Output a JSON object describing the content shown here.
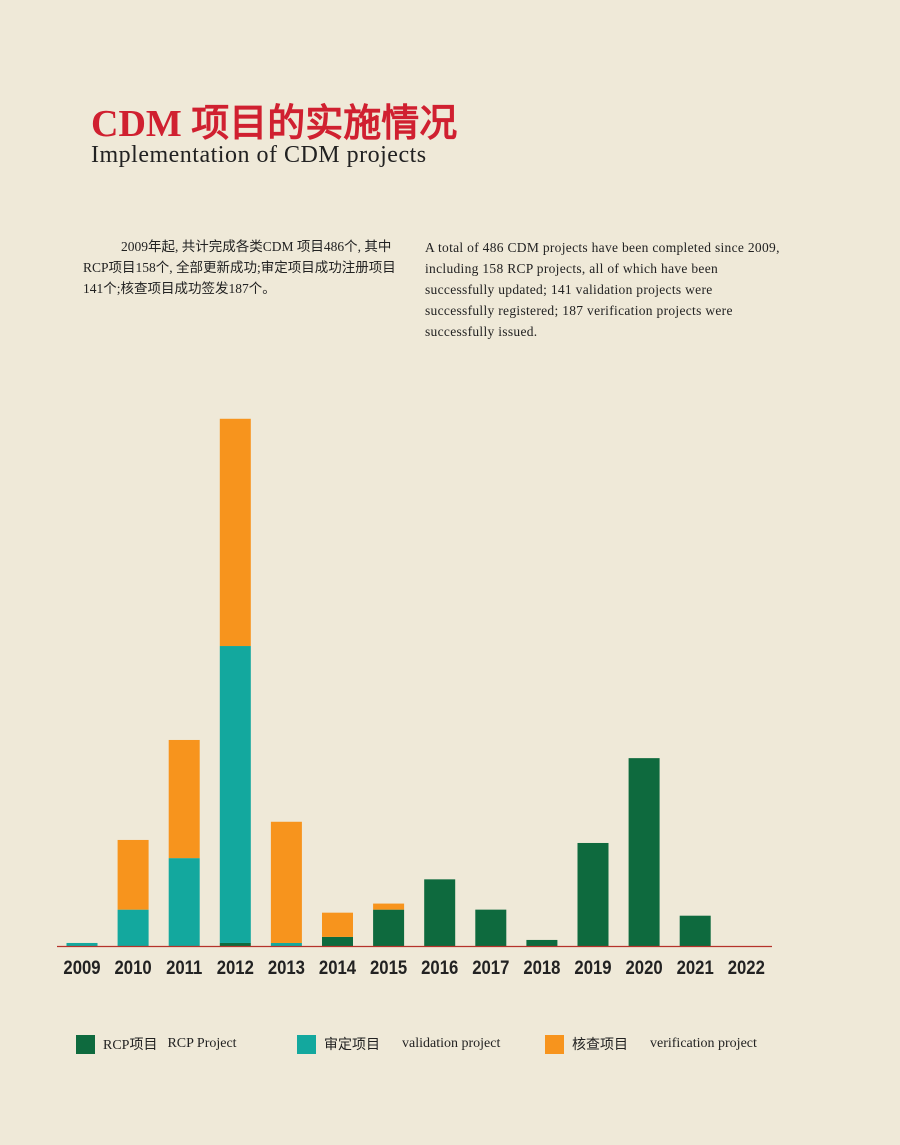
{
  "header": {
    "title_cn": "CDM 项目的实施情况",
    "title_en": "Implementation of CDM projects"
  },
  "intro": {
    "cn": "2009年起, 共计完成各类CDM  项目486个, 其中RCP项目158个, 全部更新成功;审定项目成功注册项目141个;核查项目成功签发187个。",
    "en": "A total of 486 CDM projects have been completed since 2009, including 158 RCP projects, all of which have been successfully updated; 141 validation projects were successfully registered; 187 verification projects were successfully issued."
  },
  "chart_data": {
    "type": "bar",
    "stacked": true,
    "title": "",
    "xlabel": "",
    "ylabel": "",
    "categories": [
      "2009",
      "2010",
      "2011",
      "2012",
      "2013",
      "2014",
      "2015",
      "2016",
      "2017",
      "2018",
      "2019",
      "2020",
      "2021",
      "2022"
    ],
    "series": [
      {
        "name": "RCP项目 RCP Project",
        "name_cn": "RCP项目",
        "name_en": "RCP Project",
        "color": "#0e6a3e",
        "values": [
          0,
          0,
          0,
          1,
          0,
          3,
          12,
          22,
          12,
          2,
          34,
          62,
          10,
          0
        ]
      },
      {
        "name": "审定项目 validation project",
        "name_cn": "审定项目",
        "name_en": "validation project",
        "color": "#13a89e",
        "values": [
          1,
          12,
          29,
          98,
          1,
          0,
          0,
          0,
          0,
          0,
          0,
          0,
          0,
          0
        ]
      },
      {
        "name": "核查项目 verification project",
        "name_cn": "核查项目",
        "name_en": "verification project",
        "color": "#f7941d",
        "values": [
          0,
          23,
          39,
          75,
          40,
          8,
          2,
          0,
          0,
          0,
          0,
          0,
          0,
          0
        ]
      }
    ],
    "ylim": [
      0,
      180
    ],
    "grid": false,
    "legend_position": "bottom",
    "axis_color": "#b5332b"
  }
}
